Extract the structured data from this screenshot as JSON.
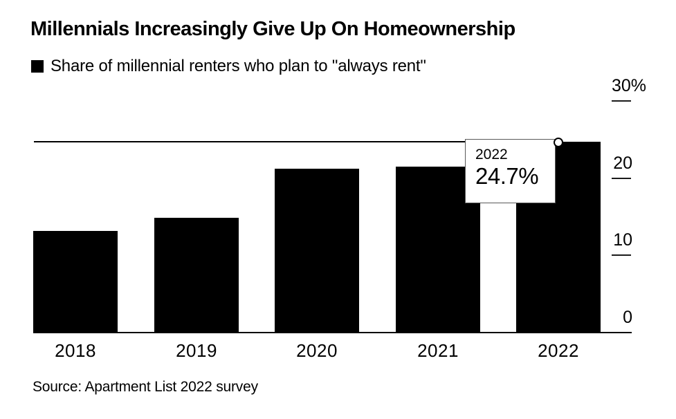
{
  "title": "Millennials Increasingly Give Up On Homeownership",
  "legend": {
    "label": "Share of millennial renters who plan to \"always rent\"",
    "swatch_color": "#000000"
  },
  "tooltip": {
    "year": "2022",
    "value": "24.7%"
  },
  "source": "Source: Apartment List 2022 survey",
  "colors": {
    "bar": "#000000",
    "background": "#ffffff",
    "axis": "#000000",
    "tooltip_border": "#595959",
    "marker_fill": "#ffffff"
  },
  "y_axis": {
    "ticks": [
      {
        "label": "30%",
        "value": 30
      },
      {
        "label": "20",
        "value": 20
      },
      {
        "label": "10",
        "value": 10
      },
      {
        "label": "0",
        "value": 0
      }
    ]
  },
  "chart_data": {
    "type": "bar",
    "categories": [
      "2018",
      "2019",
      "2020",
      "2021",
      "2022"
    ],
    "values": [
      13.2,
      14.9,
      21.2,
      21.5,
      24.7
    ],
    "title": "Millennials Increasingly Give Up On Homeownership",
    "series_label": "Share of millennial renters who plan to \"always rent\"",
    "xlabel": "",
    "ylabel": "",
    "unit": "%",
    "ylim": [
      0,
      30
    ],
    "grid": false,
    "legend_position": "top-left",
    "highlight": {
      "category": "2022",
      "value": 24.7,
      "marker": "circle-on-bar-top",
      "reference_line": 24.7,
      "tooltip": {
        "year": "2022",
        "value": "24.7%"
      }
    }
  }
}
